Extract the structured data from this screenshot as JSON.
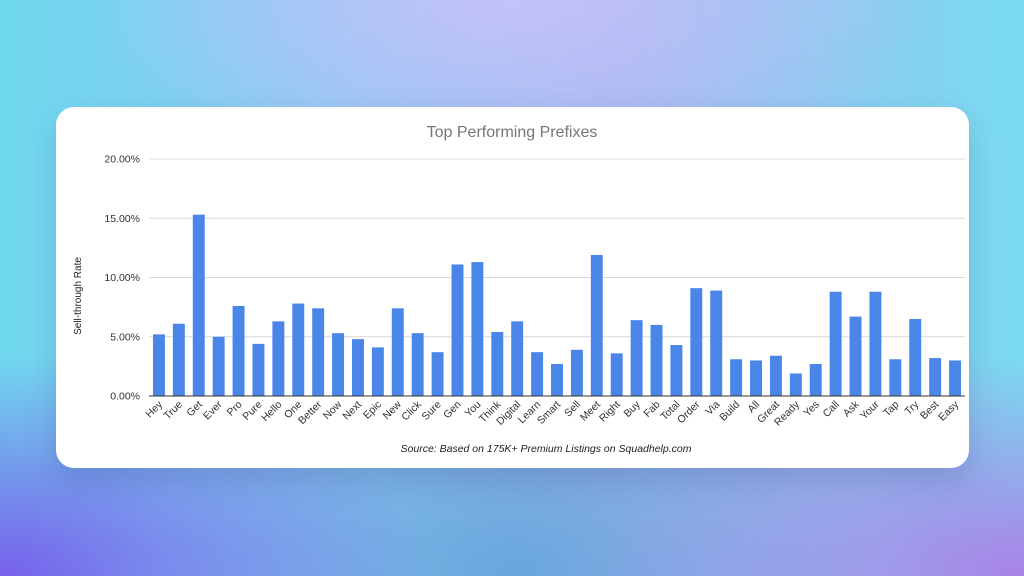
{
  "chart_data": {
    "type": "bar",
    "title": "Top Performing Prefixes",
    "xlabel": "",
    "ylabel": "Sell-through Rate",
    "ylim": [
      0,
      20
    ],
    "yticks": [
      "0.00%",
      "5.00%",
      "10.00%",
      "15.00%",
      "20.00%"
    ],
    "ytick_values": [
      0,
      5,
      10,
      15,
      20
    ],
    "categories": [
      "Hey",
      "True",
      "Get",
      "Ever",
      "Pro",
      "Pure",
      "Hello",
      "One",
      "Better",
      "Now",
      "Next",
      "Epic",
      "New",
      "Click",
      "Sure",
      "Gen",
      "You",
      "Think",
      "Digital",
      "Learn",
      "Smart",
      "Sell",
      "Meet",
      "Right",
      "Buy",
      "Fab",
      "Total",
      "Order",
      "Via",
      "Build",
      "All",
      "Great",
      "Ready",
      "Yes",
      "Call",
      "Ask",
      "Your",
      "Tap",
      "Try",
      "Best",
      "Easy"
    ],
    "values": [
      5.2,
      6.1,
      15.3,
      5.0,
      7.6,
      4.4,
      6.3,
      7.8,
      7.4,
      5.3,
      4.8,
      4.1,
      7.4,
      5.3,
      3.7,
      11.1,
      11.3,
      5.4,
      6.3,
      3.7,
      2.7,
      3.9,
      11.9,
      3.6,
      6.4,
      6.0,
      4.3,
      9.1,
      8.9,
      3.1,
      3.0,
      3.4,
      1.9,
      2.7,
      8.8,
      6.7,
      8.8,
      3.1,
      6.5,
      3.2,
      3.0
    ],
    "grid": true,
    "legend": "none",
    "bar_color": "#4a86e8",
    "source_note": "Source: Based on 175K+ Premium Listings on Squadhelp.com"
  }
}
